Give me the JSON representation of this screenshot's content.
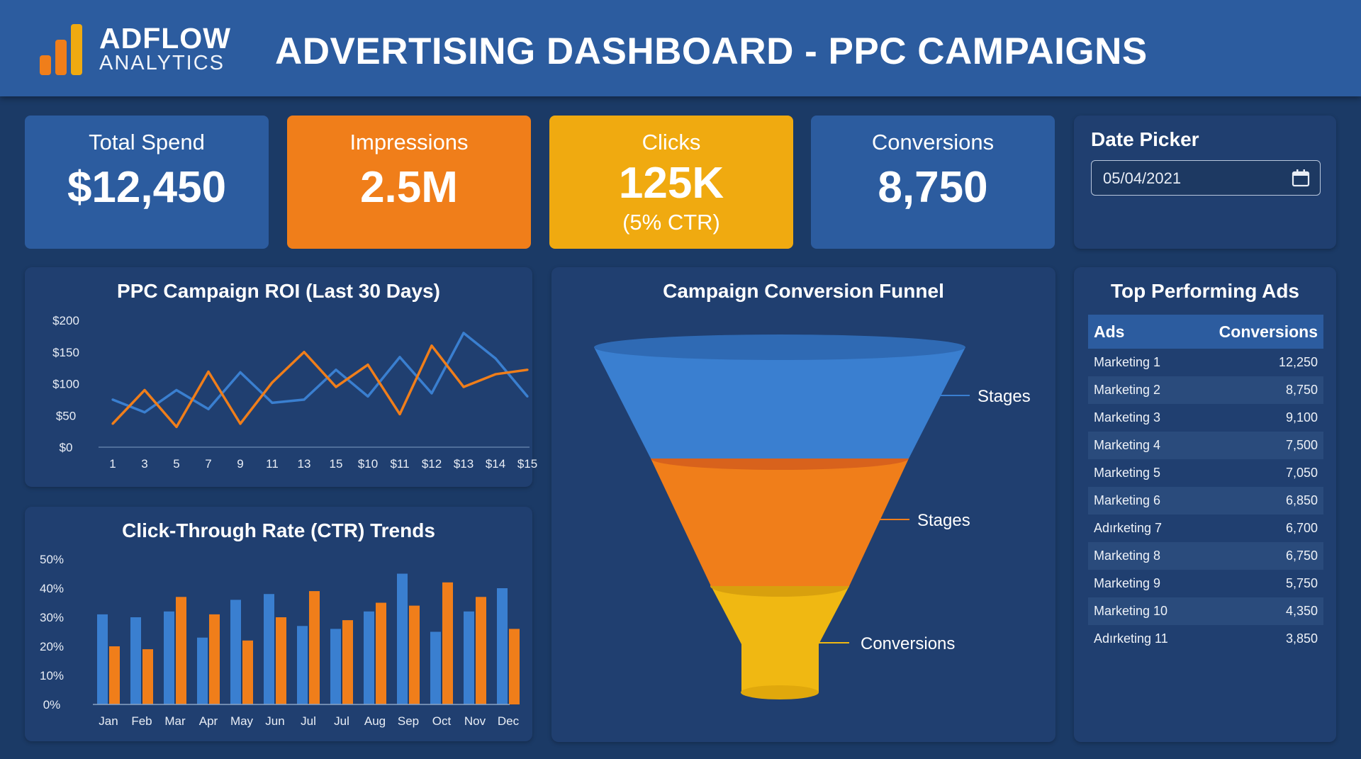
{
  "brand": {
    "name": "ADFLOW",
    "subtitle": "ANALYTICS"
  },
  "page_title": "ADVERTISING DASHBOARD - PPC CAMPAIGNS",
  "colors": {
    "blue": "#2c5c9f",
    "series_blue": "#3a7fd0",
    "orange": "#f07e1a",
    "yellow": "#f0aa10",
    "background": "#1b3a66",
    "panel": "#203f70"
  },
  "kpis": [
    {
      "label": "Total Spend",
      "value": "$12,450",
      "sub": ""
    },
    {
      "label": "Impressions",
      "value": "2.5M",
      "sub": ""
    },
    {
      "label": "Clicks",
      "value": "125K",
      "sub": "(5% CTR)"
    },
    {
      "label": "Conversions",
      "value": "8,750",
      "sub": ""
    }
  ],
  "date_picker": {
    "title": "Date Picker",
    "value": "05/04/2021",
    "icon": "calendar-icon"
  },
  "top_ads": {
    "title": "Top Performing Ads",
    "columns": [
      "Ads",
      "Conversions"
    ],
    "rows": [
      [
        "Marketing 1",
        "12,250"
      ],
      [
        "Marketing 2",
        "8,750"
      ],
      [
        "Marketing 3",
        "9,100"
      ],
      [
        "Marketing 4",
        "7,500"
      ],
      [
        "Marketing 5",
        "7,050"
      ],
      [
        "Marketing 6",
        "6,850"
      ],
      [
        "Adırketing 7",
        "6,700"
      ],
      [
        "Marketing 8",
        "6,750"
      ],
      [
        "Marketing 9",
        "5,750"
      ],
      [
        "Marketing 10",
        "4,350"
      ],
      [
        "Adırketing 11",
        "3,850"
      ]
    ]
  },
  "funnel": {
    "title": "Campaign Conversion Funnel",
    "stages": [
      {
        "label": "Stages",
        "color": "#3a7fd0"
      },
      {
        "label": "Stages",
        "color": "#f07e1a"
      },
      {
        "label": "Conversions",
        "color": "#f0b812"
      }
    ]
  },
  "chart_data": [
    {
      "type": "line",
      "title": "PPC Campaign ROI (Last 30 Days)",
      "categories": [
        "1",
        "3",
        "5",
        "7",
        "9",
        "11",
        "13",
        "15",
        "$10",
        "$11",
        "$12",
        "$13",
        "$14",
        "$15"
      ],
      "yticks": [
        "$0",
        "$50",
        "$100",
        "$150",
        "$200"
      ],
      "ylim": [
        0,
        200
      ],
      "grid": false,
      "series": [
        {
          "color": "#3a7fd0",
          "x": [
            0,
            1,
            2,
            3,
            4,
            5,
            6,
            7,
            8,
            9,
            10,
            11,
            12,
            13
          ],
          "values": [
            75,
            55,
            90,
            60,
            118,
            70,
            75,
            122,
            80,
            142,
            85,
            180,
            140,
            80
          ]
        },
        {
          "color": "#f07e1a",
          "x": [
            0,
            1,
            2,
            3,
            4,
            5,
            6,
            7,
            8,
            9,
            10,
            11,
            12,
            13
          ],
          "values": [
            37,
            90,
            32,
            119,
            37,
            102,
            150,
            95,
            130,
            52,
            160,
            95,
            115,
            122
          ]
        }
      ]
    },
    {
      "type": "bar",
      "title": "Click-Through Rate (CTR) Trends",
      "categories": [
        "Jan",
        "Feb",
        "Mar",
        "Apr",
        "May",
        "Jun",
        "Jul",
        "Jul",
        "Aug",
        "Sep",
        "Oct",
        "Nov",
        "Dec"
      ],
      "yticks": [
        "0%",
        "10%",
        "20%",
        "30%",
        "40%",
        "50%"
      ],
      "ylim": [
        0,
        50
      ],
      "grid": false,
      "series": [
        {
          "color": "#3a7fd0",
          "values": [
            31,
            30,
            32,
            23,
            36,
            38,
            27,
            26,
            32,
            45,
            25,
            32,
            40
          ]
        },
        {
          "color": "#f07e1a",
          "values": [
            20,
            19,
            37,
            31,
            22,
            30,
            39,
            29,
            35,
            34,
            42,
            37,
            26
          ]
        }
      ]
    }
  ]
}
